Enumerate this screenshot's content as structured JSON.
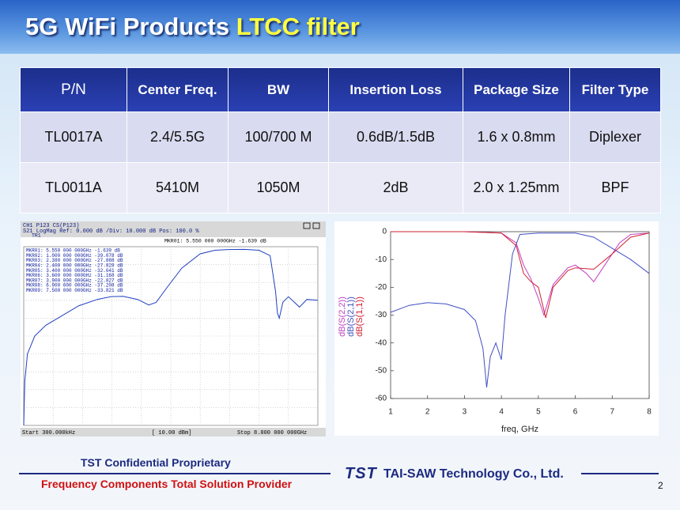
{
  "header": {
    "title": "5G WiFi Products",
    "title_highlight": "LTCC filter"
  },
  "table": {
    "columns": [
      "P/N",
      "Center Freq.",
      "BW",
      "Insertion Loss",
      "Package Size",
      "Filter Type"
    ],
    "rows": [
      [
        "TL0017A",
        "2.4/5.5G",
        "100/700 M",
        "0.6dB/1.5dB",
        "1.6 x 0.8mm",
        "Diplexer"
      ],
      [
        "TL0011A",
        "5410M",
        "1050M",
        "2dB",
        "2.0 x 1.25mm",
        "BPF"
      ]
    ]
  },
  "analyzer": {
    "status_line_1": "CH1  P123    CS(P123)",
    "status_line_2": "S21     LogMag  Ref:  0.000 dB   /Div: 10.000 dB   Pos: 100.0 %",
    "trace_label": "TR1",
    "active_marker": "MKR01:  5.550 000 000GHz          -1.639 dB",
    "markers": [
      "MKR01:  5.550 000 000GHz    -1.639 dB",
      "MKR02:  1.000 000 000GHz   -39.078 dB",
      "MKR03:  2.380 000 000GHz   -27.888 dB",
      "MKR04:  2.400 000 000GHz   -27.828 dB",
      "MKR05:  3.400 000 000GHz   -32.641 dB",
      "MKR06:  3.600 000 000GHz   -31.168 dB",
      "MKR07:  3.900 000 000GHz   -22.827 dB",
      "MKR08:  6.900 000 000GHz   -37.208 dB",
      "MKR09:  7.500 000 000GHz   -33.821 dB"
    ],
    "footer_start": "Start      300.000kHz",
    "footer_power": "[ 10.00 dBm]",
    "footer_stop": "Stop   8.000 000 000GHz",
    "xlim": [
      0,
      8
    ],
    "ylim": [
      -100,
      0
    ],
    "trace": {
      "color": "#2040c0",
      "x": [
        0.0003,
        0.03,
        0.1,
        0.3,
        0.6,
        1,
        1.5,
        2,
        2.38,
        2.7,
        3.1,
        3.4,
        3.6,
        3.9,
        4.3,
        4.8,
        5.2,
        5.55,
        6,
        6.4,
        6.7,
        6.85,
        6.9,
        6.95,
        7.05,
        7.2,
        7.5,
        7.7,
        8
      ],
      "values": [
        -100,
        -75,
        -60,
        -50,
        -44,
        -39.1,
        -33,
        -29.5,
        -27.9,
        -27.8,
        -29.5,
        -32.6,
        -31.2,
        -22.8,
        -12,
        -4,
        -2,
        -1.6,
        -1.5,
        -2,
        -5,
        -25,
        -37.2,
        -40,
        -31,
        -28,
        -33.8,
        -29.5,
        -30
      ]
    }
  },
  "chart": {
    "type": "line",
    "xlabel": "freq, GHz",
    "xlim": [
      1,
      8
    ],
    "ylim": [
      -60,
      0
    ],
    "xticks": [
      1,
      2,
      3,
      4,
      5,
      6,
      7,
      8
    ],
    "yticks": [
      0,
      -10,
      -20,
      -30,
      -40,
      -50,
      -60
    ],
    "series": [
      {
        "name": "dB(S(2,2))",
        "color": "#c040c0",
        "x": [
          1,
          3,
          4,
          4.4,
          4.6,
          4.8,
          5,
          5.15,
          5.4,
          5.8,
          6,
          6.3,
          6.5,
          6.8,
          7.2,
          7.5,
          8
        ],
        "values": [
          0,
          0,
          -0.5,
          -4,
          -12,
          -17,
          -24,
          -30,
          -19,
          -13,
          -12,
          -15,
          -18,
          -12,
          -4,
          -1,
          -0.5
        ]
      },
      {
        "name": "dB(S(2,1))",
        "color": "#4050c0",
        "x": [
          1,
          1.5,
          2,
          2.5,
          3,
          3.3,
          3.5,
          3.6,
          3.7,
          3.85,
          4,
          4.1,
          4.3,
          4.5,
          5,
          6,
          6.5,
          7,
          7.5,
          8
        ],
        "values": [
          -29,
          -26.5,
          -25.5,
          -26,
          -28,
          -32,
          -42,
          -56,
          -45,
          -40,
          -46,
          -30,
          -8,
          -1,
          -0.5,
          -0.5,
          -2,
          -6,
          -10,
          -15
        ]
      },
      {
        "name": "dB(S(1,1))",
        "color": "#d02030",
        "x": [
          1,
          3,
          4,
          4.4,
          4.6,
          4.8,
          5,
          5.2,
          5.4,
          5.8,
          6,
          6.5,
          7,
          7.5,
          8
        ],
        "values": [
          0,
          0,
          -0.5,
          -5,
          -15,
          -18,
          -20,
          -31,
          -20,
          -14,
          -13,
          -13.5,
          -8,
          -2,
          -0.5
        ]
      }
    ]
  },
  "footer": {
    "confidential": "TST Confidential Proprietary",
    "slogan": "Frequency Components Total Solution Provider",
    "logo": "TST",
    "company": "TAI-SAW Technology Co., Ltd.",
    "page": "2"
  }
}
